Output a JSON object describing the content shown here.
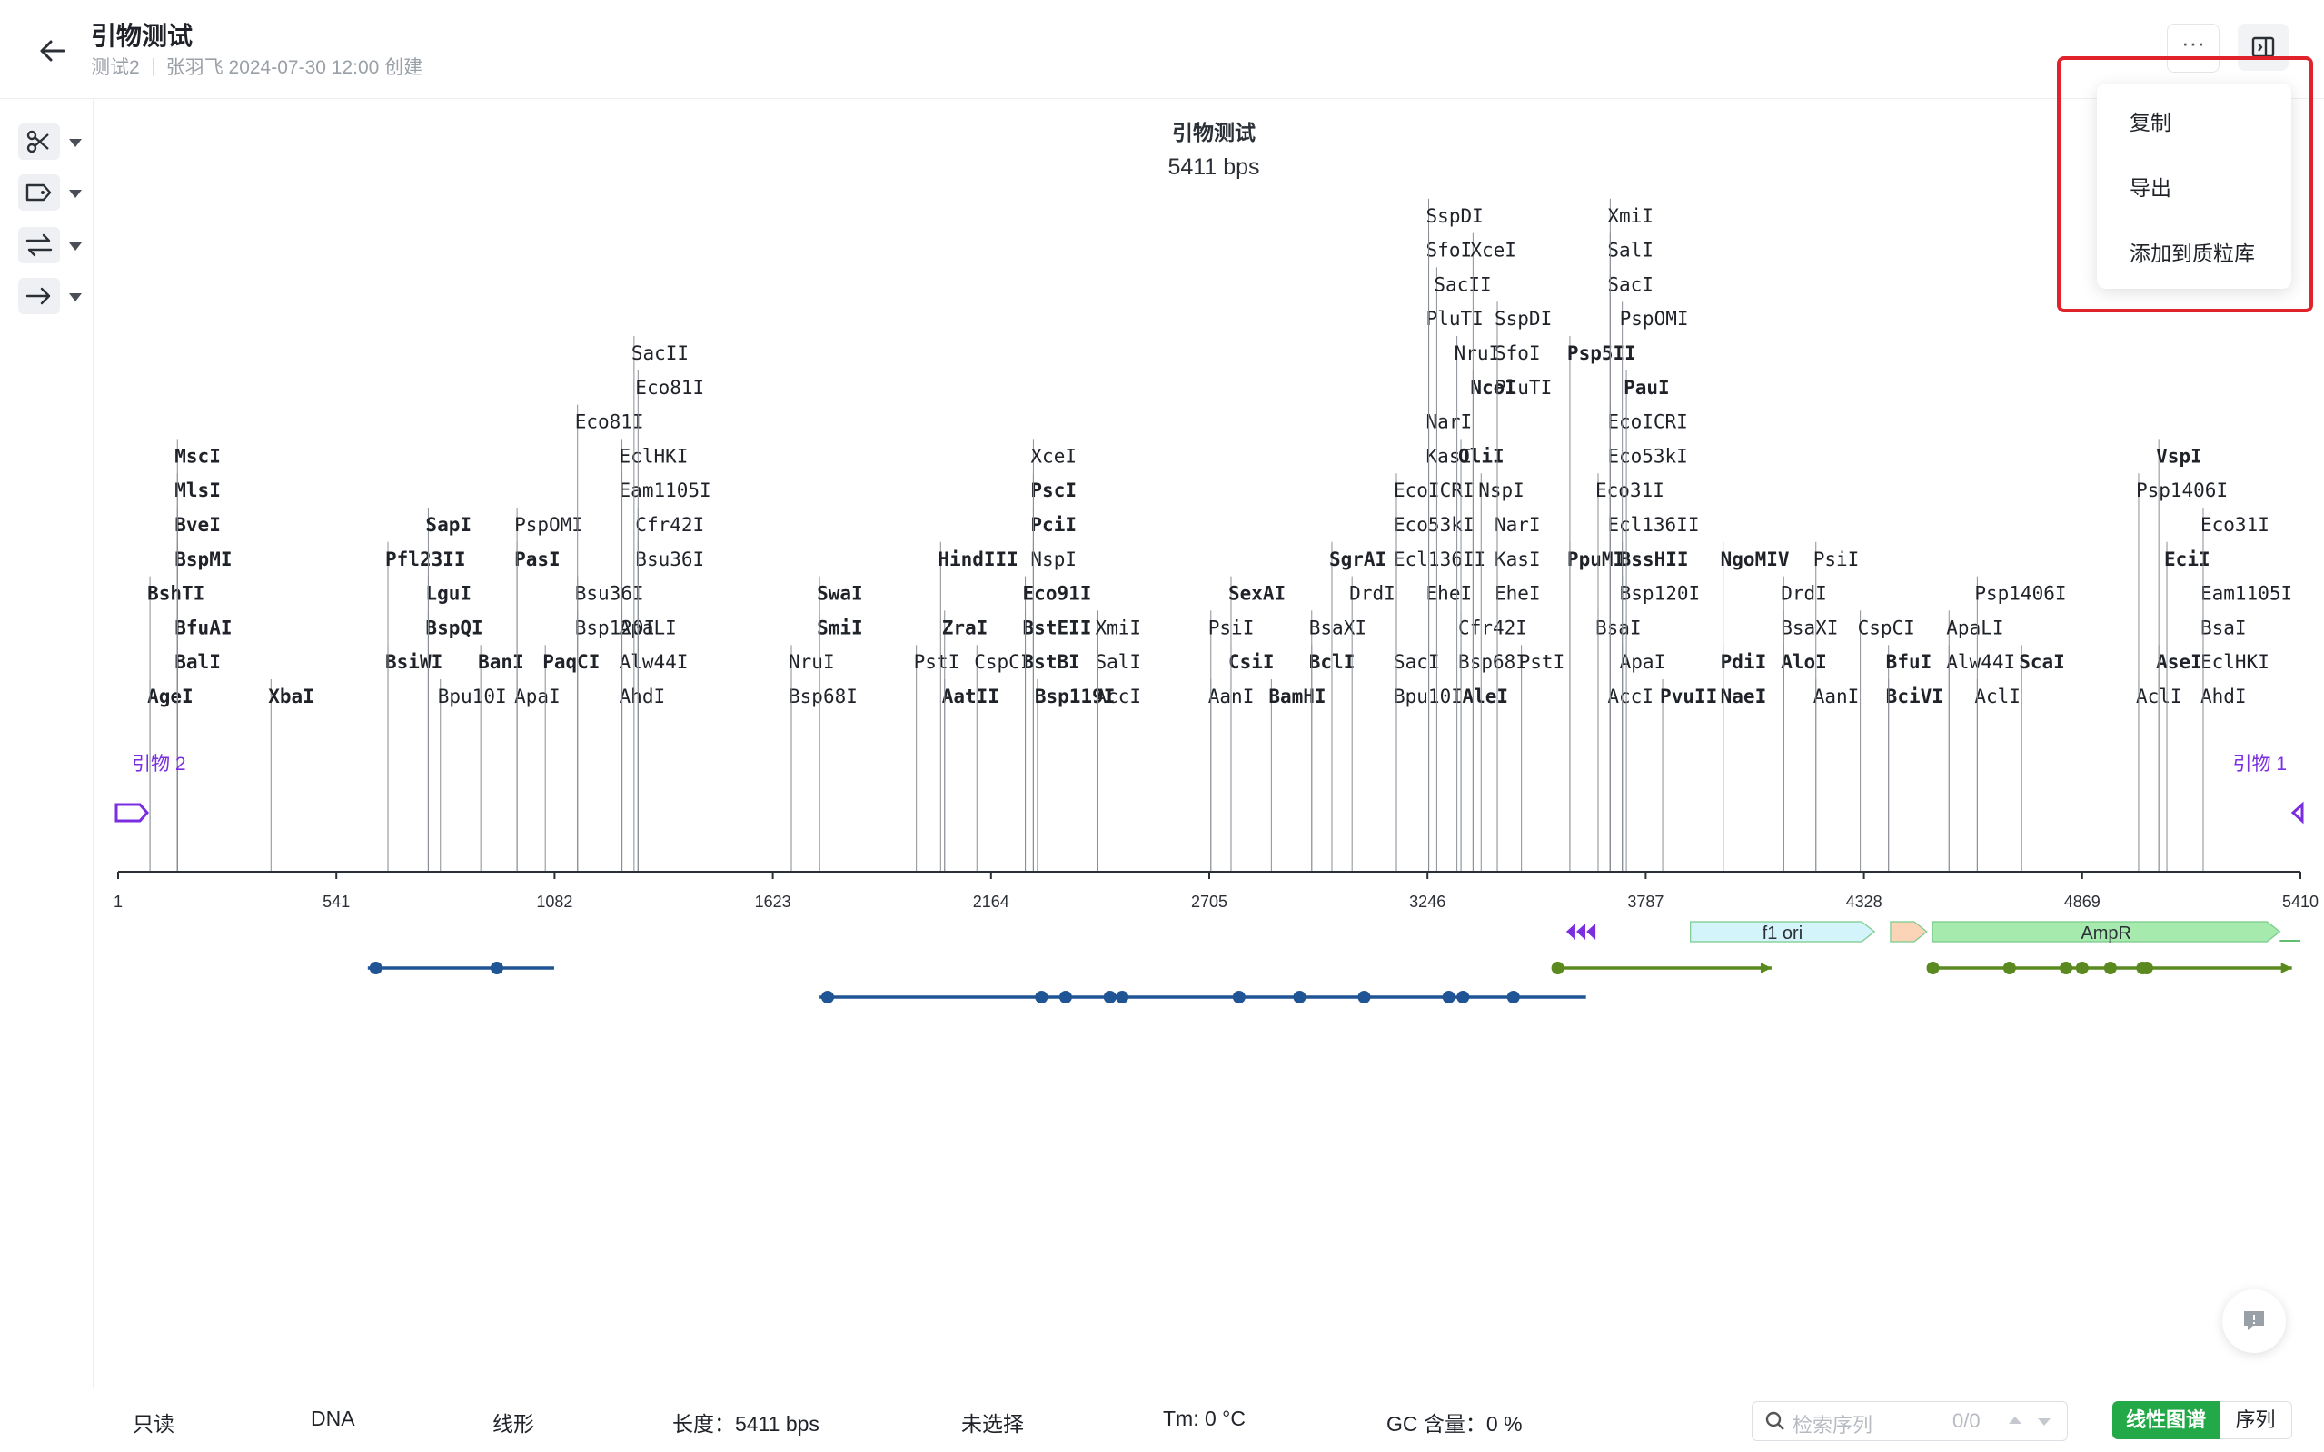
{
  "header": {
    "title": "引物测试",
    "project": "测试2",
    "meta": "张羽飞 2024-07-30 12:00 创建",
    "more_label": "···"
  },
  "menu": {
    "items": [
      {
        "label": "复制"
      },
      {
        "label": "导出"
      },
      {
        "label": "添加到质粒库"
      }
    ]
  },
  "map": {
    "name": "引物测试",
    "length_label": "5411 bps",
    "total_bp": 5411,
    "axis_ticks": [
      "1",
      "541",
      "1082",
      "1623",
      "2164",
      "2705",
      "3246",
      "3787",
      "4328",
      "4869",
      "5410"
    ],
    "primers": [
      {
        "label": "引物 2",
        "position": 1
      },
      {
        "label": "引物 1",
        "position": 5411
      }
    ],
    "features": [
      {
        "name": "f1 ori",
        "start": 3899,
        "end": 4355,
        "color": "#d4f4fb"
      },
      {
        "name": "",
        "start": 4395,
        "end": 4485,
        "color": "#fbd4b8"
      },
      {
        "name": "AmpR",
        "start": 4499,
        "end": 5360,
        "color": "#a6eaae"
      }
    ],
    "enzymes": [
      {
        "name": "AgeI",
        "pos": 80,
        "row": 0,
        "bold": true
      },
      {
        "name": "BalI",
        "pos": 148,
        "row": 1,
        "bold": true
      },
      {
        "name": "BfuAI",
        "pos": 148,
        "row": 2,
        "bold": true
      },
      {
        "name": "BshTI",
        "pos": 80,
        "row": 3,
        "bold": true
      },
      {
        "name": "BspMI",
        "pos": 148,
        "row": 4,
        "bold": true
      },
      {
        "name": "BveI",
        "pos": 148,
        "row": 5,
        "bold": true
      },
      {
        "name": "MlsI",
        "pos": 148,
        "row": 6,
        "bold": true
      },
      {
        "name": "MscI",
        "pos": 148,
        "row": 7,
        "bold": true
      },
      {
        "name": "XbaI",
        "pos": 380,
        "row": 0,
        "bold": true
      },
      {
        "name": "BsiWI",
        "pos": 670,
        "row": 1,
        "bold": true
      },
      {
        "name": "Pfl23II",
        "pos": 670,
        "row": 4,
        "bold": true
      },
      {
        "name": "Bpu10I",
        "pos": 800,
        "row": 0,
        "bold": false
      },
      {
        "name": "BspQI",
        "pos": 770,
        "row": 2,
        "bold": true
      },
      {
        "name": "LguI",
        "pos": 770,
        "row": 3,
        "bold": true
      },
      {
        "name": "SapI",
        "pos": 770,
        "row": 5,
        "bold": true
      },
      {
        "name": "ApaI",
        "pos": 990,
        "row": 0,
        "bold": false
      },
      {
        "name": "BanI",
        "pos": 900,
        "row": 1,
        "bold": true
      },
      {
        "name": "PasI",
        "pos": 990,
        "row": 4,
        "bold": true
      },
      {
        "name": "PspOMI",
        "pos": 990,
        "row": 5,
        "bold": false
      },
      {
        "name": "PaqCI",
        "pos": 1060,
        "row": 1,
        "bold": true
      },
      {
        "name": "Bsp120I",
        "pos": 1140,
        "row": 2,
        "bold": false
      },
      {
        "name": "AhdI",
        "pos": 1250,
        "row": 0,
        "bold": false
      },
      {
        "name": "Alw44I",
        "pos": 1250,
        "row": 1,
        "bold": false
      },
      {
        "name": "ApaLI",
        "pos": 1250,
        "row": 2,
        "bold": false
      },
      {
        "name": "Bsu36I",
        "pos": 1140,
        "row": 3,
        "bold": false
      },
      {
        "name": "Bsu36I",
        "pos": 1290,
        "row": 4,
        "bold": false
      },
      {
        "name": "Cfr42I",
        "pos": 1290,
        "row": 5,
        "bold": false
      },
      {
        "name": "Eam1105I",
        "pos": 1250,
        "row": 6,
        "bold": false
      },
      {
        "name": "EclHKI",
        "pos": 1250,
        "row": 7,
        "bold": false
      },
      {
        "name": "Eco81I",
        "pos": 1140,
        "row": 8,
        "bold": false
      },
      {
        "name": "Eco81I",
        "pos": 1290,
        "row": 9,
        "bold": false
      },
      {
        "name": "SacII",
        "pos": 1280,
        "row": 10,
        "bold": false
      },
      {
        "name": "Bsp68I",
        "pos": 1670,
        "row": 0,
        "bold": false
      },
      {
        "name": "NruI",
        "pos": 1670,
        "row": 1,
        "bold": false
      },
      {
        "name": "SmiI",
        "pos": 1740,
        "row": 2,
        "bold": true
      },
      {
        "name": "SwaI",
        "pos": 1740,
        "row": 3,
        "bold": true
      },
      {
        "name": "PstI",
        "pos": 1980,
        "row": 1,
        "bold": false
      },
      {
        "name": "AatII",
        "pos": 2050,
        "row": 0,
        "bold": true
      },
      {
        "name": "ZraI",
        "pos": 2050,
        "row": 2,
        "bold": true
      },
      {
        "name": "HindIII",
        "pos": 2040,
        "row": 4,
        "bold": true
      },
      {
        "name": "CspCI",
        "pos": 2130,
        "row": 1,
        "bold": false
      },
      {
        "name": "BstBI",
        "pos": 2250,
        "row": 1,
        "bold": true
      },
      {
        "name": "BstEII",
        "pos": 2250,
        "row": 2,
        "bold": true
      },
      {
        "name": "Eco91I",
        "pos": 2250,
        "row": 3,
        "bold": true
      },
      {
        "name": "Bsp119I",
        "pos": 2280,
        "row": 0,
        "bold": true
      },
      {
        "name": "NspI",
        "pos": 2270,
        "row": 4,
        "bold": false
      },
      {
        "name": "PciI",
        "pos": 2270,
        "row": 5,
        "bold": true
      },
      {
        "name": "PscI",
        "pos": 2270,
        "row": 6,
        "bold": true
      },
      {
        "name": "XceI",
        "pos": 2270,
        "row": 7,
        "bold": false
      },
      {
        "name": "AccI",
        "pos": 2430,
        "row": 0,
        "bold": false
      },
      {
        "name": "SalI",
        "pos": 2430,
        "row": 1,
        "bold": false
      },
      {
        "name": "XmiI",
        "pos": 2430,
        "row": 2,
        "bold": false
      },
      {
        "name": "AanI",
        "pos": 2710,
        "row": 0,
        "bold": false
      },
      {
        "name": "CsiI",
        "pos": 2760,
        "row": 1,
        "bold": true
      },
      {
        "name": "PsiI",
        "pos": 2710,
        "row": 2,
        "bold": false
      },
      {
        "name": "SexAI",
        "pos": 2760,
        "row": 3,
        "bold": true
      },
      {
        "name": "BamHI",
        "pos": 2860,
        "row": 0,
        "bold": true
      },
      {
        "name": "BclI",
        "pos": 2960,
        "row": 1,
        "bold": true
      },
      {
        "name": "BsaXI",
        "pos": 2960,
        "row": 2,
        "bold": false
      },
      {
        "name": "SgrAI",
        "pos": 3010,
        "row": 4,
        "bold": true
      },
      {
        "name": "DrdI",
        "pos": 3060,
        "row": 3,
        "bold": false
      },
      {
        "name": "Bpu10I",
        "pos": 3170,
        "row": 0,
        "bold": false
      },
      {
        "name": "SacI",
        "pos": 3170,
        "row": 1,
        "bold": false
      },
      {
        "name": "Ecl136II",
        "pos": 3170,
        "row": 4,
        "bold": false
      },
      {
        "name": "Eco53kI",
        "pos": 3170,
        "row": 5,
        "bold": false
      },
      {
        "name": "EcoICRI",
        "pos": 3170,
        "row": 6,
        "bold": false
      },
      {
        "name": "AleI",
        "pos": 3340,
        "row": 0,
        "bold": true
      },
      {
        "name": "Bsp68I",
        "pos": 3330,
        "row": 1,
        "bold": false
      },
      {
        "name": "Cfr42I",
        "pos": 3330,
        "row": 2,
        "bold": false
      },
      {
        "name": "EheI",
        "pos": 3250,
        "row": 3,
        "bold": false
      },
      {
        "name": "KasI",
        "pos": 3250,
        "row": 7,
        "bold": false
      },
      {
        "name": "NarI",
        "pos": 3250,
        "row": 8,
        "bold": false
      },
      {
        "name": "PluTI",
        "pos": 3250,
        "row": 11,
        "bold": false
      },
      {
        "name": "SacII",
        "pos": 3270,
        "row": 12,
        "bold": false
      },
      {
        "name": "SfoI",
        "pos": 3250,
        "row": 13,
        "bold": false
      },
      {
        "name": "SspDI",
        "pos": 3250,
        "row": 14,
        "bold": false
      },
      {
        "name": "OliI",
        "pos": 3330,
        "row": 7,
        "bold": true
      },
      {
        "name": "NruI",
        "pos": 3320,
        "row": 10,
        "bold": false
      },
      {
        "name": "NcoI",
        "pos": 3360,
        "row": 9,
        "bold": true
      },
      {
        "name": "XceI",
        "pos": 3360,
        "row": 13,
        "bold": false
      },
      {
        "name": "PstI",
        "pos": 3480,
        "row": 1,
        "bold": false
      },
      {
        "name": "EheI",
        "pos": 3420,
        "row": 3,
        "bold": false
      },
      {
        "name": "KasI",
        "pos": 3420,
        "row": 4,
        "bold": false
      },
      {
        "name": "NarI",
        "pos": 3420,
        "row": 5,
        "bold": false
      },
      {
        "name": "NspI",
        "pos": 3380,
        "row": 6,
        "bold": false
      },
      {
        "name": "PluTI",
        "pos": 3420,
        "row": 9,
        "bold": false
      },
      {
        "name": "SfoI",
        "pos": 3420,
        "row": 10,
        "bold": false
      },
      {
        "name": "SspDI",
        "pos": 3420,
        "row": 11,
        "bold": false
      },
      {
        "name": "AccI",
        "pos": 3700,
        "row": 0,
        "bold": false
      },
      {
        "name": "ApaI",
        "pos": 3730,
        "row": 1,
        "bold": false
      },
      {
        "name": "BsaI",
        "pos": 3670,
        "row": 2,
        "bold": false
      },
      {
        "name": "Bsp120I",
        "pos": 3730,
        "row": 3,
        "bold": false
      },
      {
        "name": "PpuMI",
        "pos": 3600,
        "row": 4,
        "bold": true
      },
      {
        "name": "BssHII",
        "pos": 3730,
        "row": 4,
        "bold": true
      },
      {
        "name": "Ecl136II",
        "pos": 3700,
        "row": 5,
        "bold": false
      },
      {
        "name": "Eco31I",
        "pos": 3670,
        "row": 6,
        "bold": false
      },
      {
        "name": "Eco53kI",
        "pos": 3700,
        "row": 7,
        "bold": false
      },
      {
        "name": "EcoICRI",
        "pos": 3700,
        "row": 8,
        "bold": false
      },
      {
        "name": "PauI",
        "pos": 3740,
        "row": 9,
        "bold": true
      },
      {
        "name": "Psp5II",
        "pos": 3600,
        "row": 10,
        "bold": true
      },
      {
        "name": "PspOMI",
        "pos": 3730,
        "row": 11,
        "bold": false
      },
      {
        "name": "SacI",
        "pos": 3700,
        "row": 12,
        "bold": false
      },
      {
        "name": "SalI",
        "pos": 3700,
        "row": 13,
        "bold": false
      },
      {
        "name": "XmiI",
        "pos": 3700,
        "row": 14,
        "bold": false
      },
      {
        "name": "PvuII",
        "pos": 3830,
        "row": 0,
        "bold": true
      },
      {
        "name": "NaeI",
        "pos": 3980,
        "row": 0,
        "bold": true
      },
      {
        "name": "PdiI",
        "pos": 3980,
        "row": 1,
        "bold": true
      },
      {
        "name": "NgoMIV",
        "pos": 3980,
        "row": 4,
        "bold": true
      },
      {
        "name": "AloI",
        "pos": 4130,
        "row": 1,
        "bold": true
      },
      {
        "name": "BsaXI",
        "pos": 4130,
        "row": 2,
        "bold": false
      },
      {
        "name": "DrdI",
        "pos": 4130,
        "row": 3,
        "bold": false
      },
      {
        "name": "AanI",
        "pos": 4210,
        "row": 0,
        "bold": false
      },
      {
        "name": "PsiI",
        "pos": 4210,
        "row": 4,
        "bold": false
      },
      {
        "name": "CspCI",
        "pos": 4320,
        "row": 2,
        "bold": false
      },
      {
        "name": "BciVI",
        "pos": 4390,
        "row": 0,
        "bold": true
      },
      {
        "name": "BfuI",
        "pos": 4390,
        "row": 1,
        "bold": true
      },
      {
        "name": "Alw44I",
        "pos": 4540,
        "row": 1,
        "bold": false
      },
      {
        "name": "ApaLI",
        "pos": 4540,
        "row": 2,
        "bold": false
      },
      {
        "name": "AclI",
        "pos": 4610,
        "row": 0,
        "bold": false
      },
      {
        "name": "ScaI",
        "pos": 4720,
        "row": 1,
        "bold": true
      },
      {
        "name": "Psp1406I",
        "pos": 4610,
        "row": 3,
        "bold": false
      },
      {
        "name": "AclI",
        "pos": 5010,
        "row": 0,
        "bold": false
      },
      {
        "name": "AseI",
        "pos": 5060,
        "row": 1,
        "bold": true
      },
      {
        "name": "AhdI",
        "pos": 5170,
        "row": 0,
        "bold": false
      },
      {
        "name": "EclHKI",
        "pos": 5170,
        "row": 1,
        "bold": false
      },
      {
        "name": "BsaI",
        "pos": 5170,
        "row": 2,
        "bold": false
      },
      {
        "name": "Eam1105I",
        "pos": 5170,
        "row": 3,
        "bold": false
      },
      {
        "name": "EciI",
        "pos": 5080,
        "row": 4,
        "bold": true
      },
      {
        "name": "Eco31I",
        "pos": 5170,
        "row": 5,
        "bold": false
      },
      {
        "name": "Psp1406I",
        "pos": 5010,
        "row": 6,
        "bold": false
      },
      {
        "name": "VspI",
        "pos": 5060,
        "row": 7,
        "bold": true
      }
    ],
    "orfs": [
      {
        "lane": 0,
        "start": 620,
        "end": 1082,
        "color": "#1f5495",
        "dots": [
          640,
          940
        ]
      },
      {
        "lane": 1,
        "start": 1740,
        "end": 3640,
        "color": "#1f5495",
        "dots": [
          1760,
          2290,
          2350,
          2460,
          2490,
          2780,
          2930,
          3090,
          3300,
          3335,
          3460
        ]
      },
      {
        "lane": 0,
        "start": 3570,
        "end": 4100,
        "color": "#5a8a1f",
        "dots": [
          3570
        ]
      },
      {
        "lane": 0,
        "start": 4490,
        "end": 5390,
        "color": "#5a8a1f",
        "dots": [
          4500,
          4690,
          4830,
          4870,
          4940,
          5020,
          5030
        ]
      }
    ]
  },
  "status": {
    "readonly": "只读",
    "mol_type": "DNA",
    "topology": "线形",
    "length": "长度：5411 bps",
    "selection": "未选择",
    "tm": "Tm: 0 °C",
    "gc": "GC 含量：0 %",
    "search_placeholder": "检索序列",
    "search_count": "0/0",
    "view_linear": "线性图谱",
    "view_sequence": "序列"
  }
}
